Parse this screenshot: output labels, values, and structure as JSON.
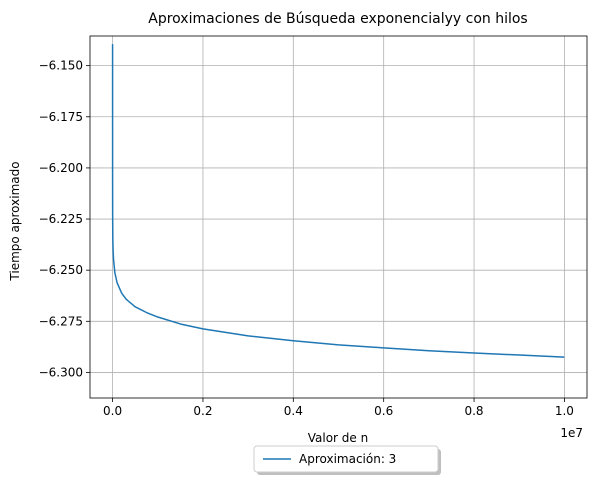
{
  "chart_data": {
    "type": "line",
    "title": "Aproximaciones de Búsqueda exponencialyy con hilos",
    "xlabel": "Valor de n",
    "ylabel": "Tiempo aproximado",
    "x_offset_label": "1e7",
    "xlim": [
      -0.05,
      1.05
    ],
    "ylim": [
      -6.3125,
      -6.1355
    ],
    "xticks": [
      0.0,
      0.2,
      0.4,
      0.6,
      0.8,
      1.0
    ],
    "xtick_labels": [
      "0.0",
      "0.2",
      "0.4",
      "0.6",
      "0.8",
      "1.0"
    ],
    "yticks": [
      -6.15,
      -6.175,
      -6.2,
      -6.225,
      -6.25,
      -6.275,
      -6.3
    ],
    "ytick_labels": [
      "−6.150",
      "−6.175",
      "−6.200",
      "−6.225",
      "−6.250",
      "−6.275",
      "−6.300"
    ],
    "grid": true,
    "legend_placement": "bottom-center",
    "series": [
      {
        "name": "Aproximación: 3",
        "color": "#1f77b4",
        "x": [
          1e-07,
          1e-05,
          0.0001,
          0.0005,
          0.001,
          0.002,
          0.005,
          0.01,
          0.02,
          0.03,
          0.05,
          0.075,
          0.1,
          0.15,
          0.2,
          0.3,
          0.4,
          0.5,
          0.6,
          0.7,
          0.8,
          0.9,
          1.0
        ],
        "y": [
          -6.1395,
          -6.2055,
          -6.2228,
          -6.2345,
          -6.2395,
          -6.2445,
          -6.2512,
          -6.2562,
          -6.2612,
          -6.2642,
          -6.2679,
          -6.2707,
          -6.2729,
          -6.2763,
          -6.2787,
          -6.2821,
          -6.2845,
          -6.2865,
          -6.288,
          -6.2894,
          -6.2905,
          -6.2915,
          -6.2925
        ]
      }
    ]
  }
}
